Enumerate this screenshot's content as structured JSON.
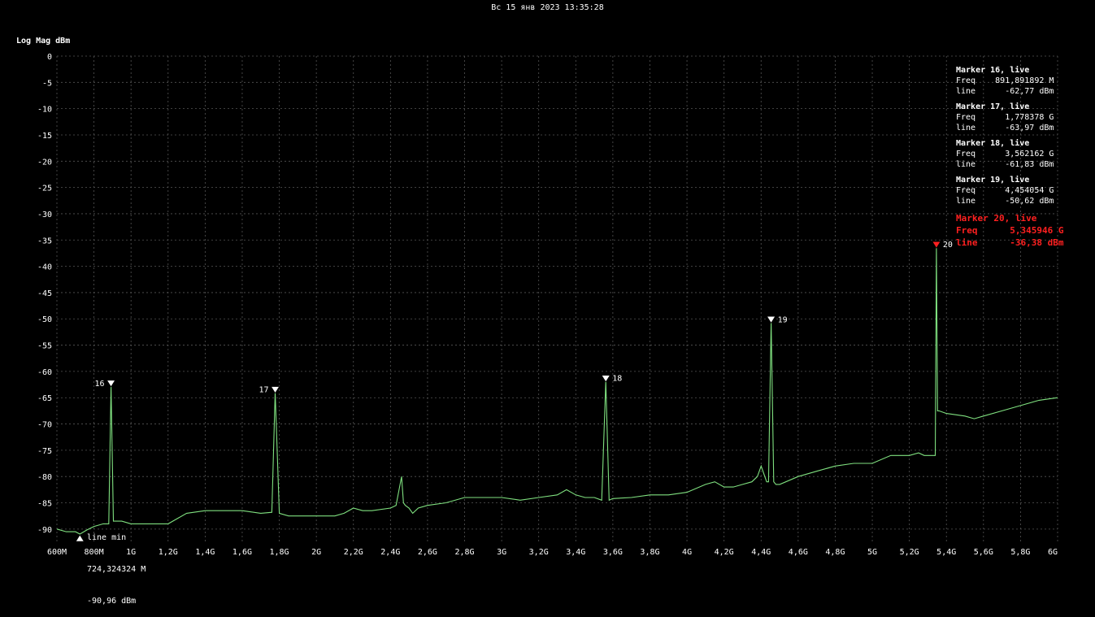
{
  "timestamp": "Вс 15 янв 2023 13:35:28",
  "colors": {
    "trace": "#7fe07f",
    "grid": "#555555",
    "active_marker": "#ff2020",
    "marker": "#ffffff"
  },
  "chart_data": {
    "type": "line",
    "title": "",
    "ylabel": "Log Mag dBm",
    "xlabel": "",
    "xlim": [
      600,
      6000
    ],
    "ylim": [
      -92.5,
      0
    ],
    "grid": true,
    "y_ticks": [
      "0",
      "-5",
      "-10",
      "-15",
      "-20",
      "-25",
      "-30",
      "-35",
      "-40",
      "-45",
      "-50",
      "-55",
      "-60",
      "-65",
      "-70",
      "-75",
      "-80",
      "-85",
      "-90"
    ],
    "x_ticks": [
      "600M",
      "800M",
      "1G",
      "1,2G",
      "1,4G",
      "1,6G",
      "1,8G",
      "2G",
      "2,2G",
      "2,4G",
      "2,6G",
      "2,8G",
      "3G",
      "3,2G",
      "3,4G",
      "3,6G",
      "3,8G",
      "4G",
      "4,2G",
      "4,4G",
      "4,6G",
      "4,8G",
      "5G",
      "5,2G",
      "5,4G",
      "5,6G",
      "5,8G",
      "6G"
    ],
    "series": [
      {
        "x": [
          600,
          650,
          700,
          724,
          760,
          800,
          850,
          880,
          892,
          905,
          950,
          1000,
          1100,
          1200,
          1250,
          1300,
          1400,
          1500,
          1600,
          1700,
          1760,
          1778,
          1800,
          1850,
          1900,
          2000,
          2100,
          2150,
          2200,
          2250,
          2300,
          2400,
          2430,
          2460,
          2470,
          2480,
          2500,
          2520,
          2550,
          2600,
          2700,
          2800,
          2900,
          3000,
          3100,
          3200,
          3300,
          3350,
          3400,
          3450,
          3500,
          3540,
          3562,
          3580,
          3600,
          3700,
          3800,
          3900,
          4000,
          4100,
          4150,
          4200,
          4250,
          4300,
          4350,
          4380,
          4400,
          4430,
          4440,
          4454,
          4468,
          4480,
          4500,
          4600,
          4700,
          4800,
          4900,
          5000,
          5100,
          5200,
          5250,
          5280,
          5300,
          5330,
          5340,
          5346,
          5352,
          5360,
          5400,
          5500,
          5550,
          5600,
          5700,
          5800,
          5900,
          6000
        ],
        "y": [
          -90,
          -90.5,
          -90.5,
          -90.96,
          -90.2,
          -89.5,
          -89,
          -89,
          -62.77,
          -88.5,
          -88.5,
          -89,
          -89,
          -89,
          -88,
          -87,
          -86.5,
          -86.5,
          -86.5,
          -87,
          -86.8,
          -63.97,
          -87,
          -87.5,
          -87.5,
          -87.5,
          -87.5,
          -87,
          -86,
          -86.5,
          -86.5,
          -86,
          -85.5,
          -80,
          -85,
          -85.5,
          -86,
          -87,
          -86,
          -85.5,
          -85,
          -84,
          -84,
          -84,
          -84.5,
          -84,
          -83.5,
          -82.5,
          -83.5,
          -84,
          -84,
          -84.5,
          -61.83,
          -84.5,
          -84.2,
          -84,
          -83.5,
          -83.5,
          -83,
          -81.5,
          -81,
          -82,
          -82,
          -81.5,
          -81,
          -80,
          -78,
          -81,
          -81,
          -50.62,
          -81,
          -81.5,
          -81.5,
          -80,
          -79,
          -78,
          -77.5,
          -77.5,
          -76,
          -76,
          -75.5,
          -76,
          -76,
          -76,
          -76,
          -36.38,
          -67.5,
          -67.5,
          -68,
          -68.5,
          -69,
          -68.5,
          -67.5,
          -66.5,
          -65.5,
          -65
        ]
      }
    ],
    "markers": [
      {
        "id": "16",
        "title": "Marker 16, live",
        "freq_label": "Freq",
        "freq_value": "891,891892 M",
        "line_label": "line",
        "line_value": "-62,77 dBm",
        "x": 892,
        "y": -62.77,
        "active": false
      },
      {
        "id": "17",
        "title": "Marker 17, live",
        "freq_label": "Freq",
        "freq_value": "1,778378 G",
        "line_label": "line",
        "line_value": "-63,97 dBm",
        "x": 1778,
        "y": -63.97,
        "active": false
      },
      {
        "id": "18",
        "title": "Marker 18, live",
        "freq_label": "Freq",
        "freq_value": "3,562162 G",
        "line_label": "line",
        "line_value": "-61,83 dBm",
        "x": 3562,
        "y": -61.83,
        "active": false
      },
      {
        "id": "19",
        "title": "Marker 19, live",
        "freq_label": "Freq",
        "freq_value": "4,454054 G",
        "line_label": "line",
        "line_value": "-50,62 dBm",
        "x": 4454,
        "y": -50.62,
        "active": false
      },
      {
        "id": "20",
        "title": "Marker 20, live",
        "freq_label": "Freq",
        "freq_value": "5,345946 G",
        "line_label": "line",
        "line_value": "-36,38 dBm",
        "x": 5346,
        "y": -36.38,
        "active": true
      }
    ],
    "min_marker": {
      "title": "line min",
      "freq": "724,324324 M",
      "level": "-90,96 dBm",
      "x": 724,
      "y": -90.96
    }
  }
}
